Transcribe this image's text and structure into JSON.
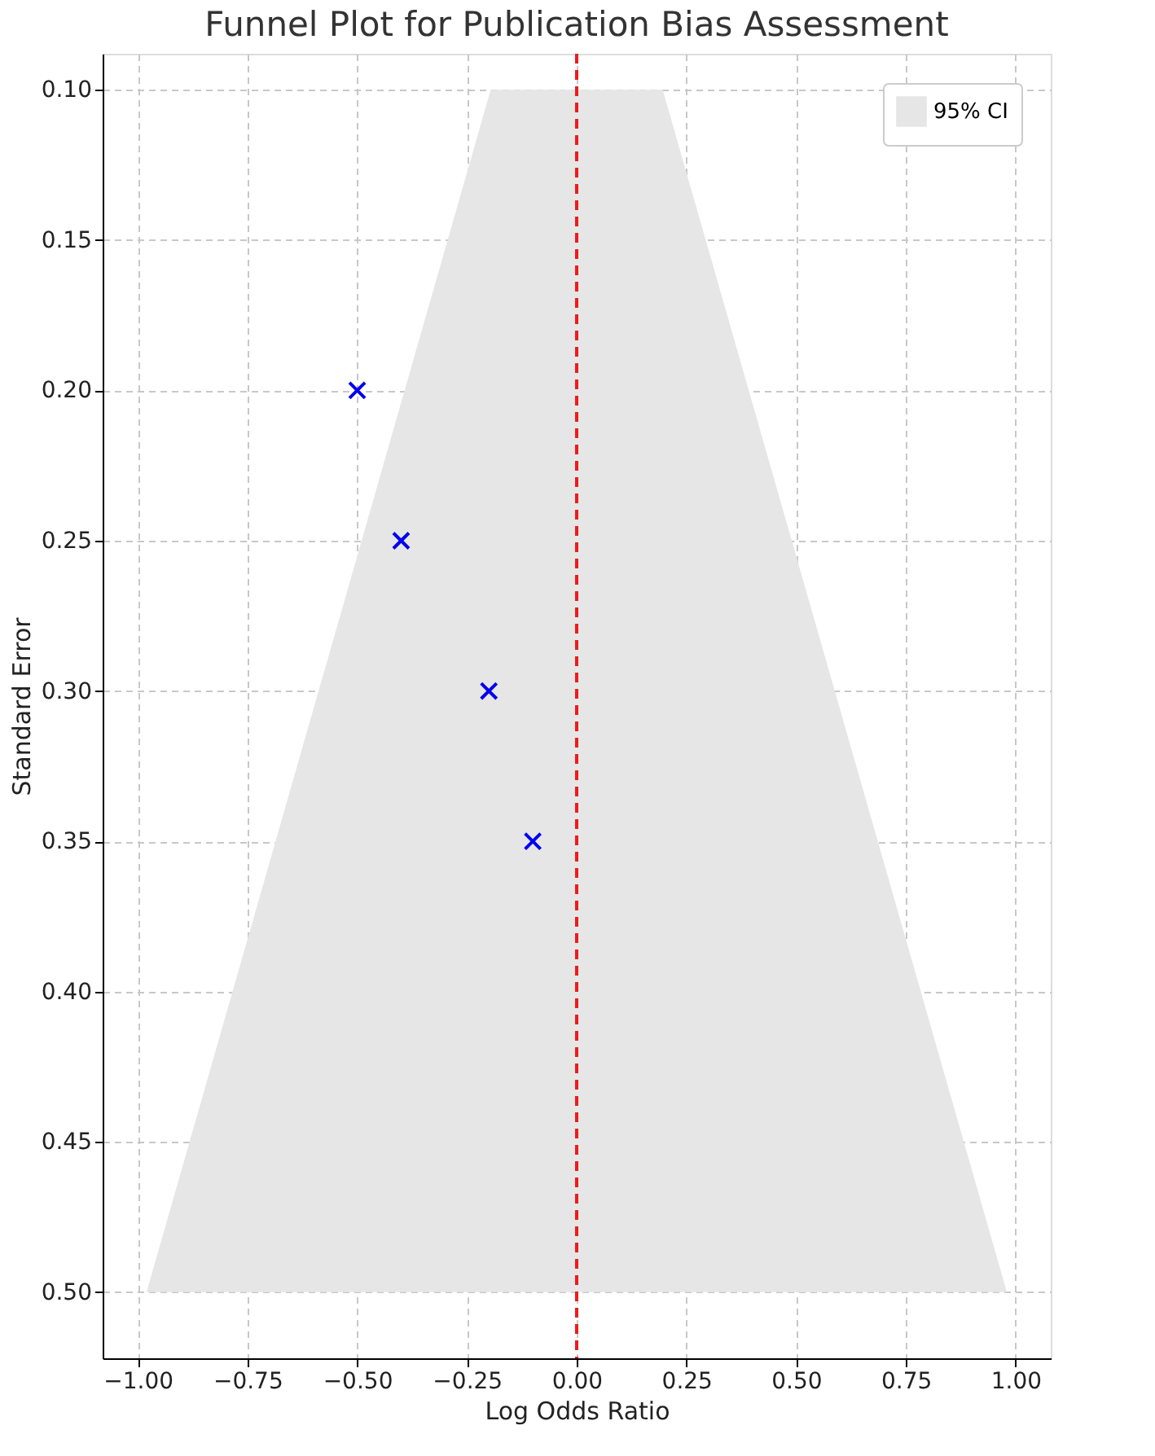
{
  "chart_data": {
    "type": "scatter",
    "title": "Funnel Plot for Publication Bias Assessment",
    "xlabel": "Log Odds Ratio",
    "ylabel": "Standard Error",
    "series": [
      {
        "name": "95% CI",
        "type": "area",
        "color": "#e6e6e6",
        "x": [
          -0.98,
          -0.196,
          0.196,
          0.98,
          -0.98
        ],
        "values": [
          0.5,
          0.1,
          0.1,
          0.5,
          0.5
        ]
      },
      {
        "color": "#0000ee",
        "marker": "cross",
        "x": [
          -0.5,
          -0.4,
          -0.2,
          -0.1
        ],
        "values": [
          0.2,
          0.25,
          0.3,
          0.35
        ]
      }
    ],
    "ref_lines": [
      {
        "axis": "x",
        "value": 0.0,
        "color": "#ee1c1c",
        "line_style": "dashed"
      }
    ],
    "xlim": [
      -1.08,
      1.08
    ],
    "ylim": [
      0.522,
      0.088
    ],
    "xticks": [
      {
        "value": -1.0,
        "label": "−1.00"
      },
      {
        "value": -0.75,
        "label": "−0.75"
      },
      {
        "value": -0.5,
        "label": "−0.50"
      },
      {
        "value": -0.25,
        "label": "−0.25"
      },
      {
        "value": 0.0,
        "label": "0.00"
      },
      {
        "value": 0.25,
        "label": "0.25"
      },
      {
        "value": 0.5,
        "label": "0.50"
      },
      {
        "value": 0.75,
        "label": "0.75"
      },
      {
        "value": 1.0,
        "label": "1.00"
      }
    ],
    "yticks": [
      {
        "value": 0.1,
        "label": "0.10"
      },
      {
        "value": 0.15,
        "label": "0.15"
      },
      {
        "value": 0.2,
        "label": "0.20"
      },
      {
        "value": 0.25,
        "label": "0.25"
      },
      {
        "value": 0.3,
        "label": "0.30"
      },
      {
        "value": 0.35,
        "label": "0.35"
      },
      {
        "value": 0.4,
        "label": "0.40"
      },
      {
        "value": 0.45,
        "label": "0.45"
      },
      {
        "value": 0.5,
        "label": "0.50"
      }
    ],
    "grid": true,
    "legend": "top right"
  }
}
